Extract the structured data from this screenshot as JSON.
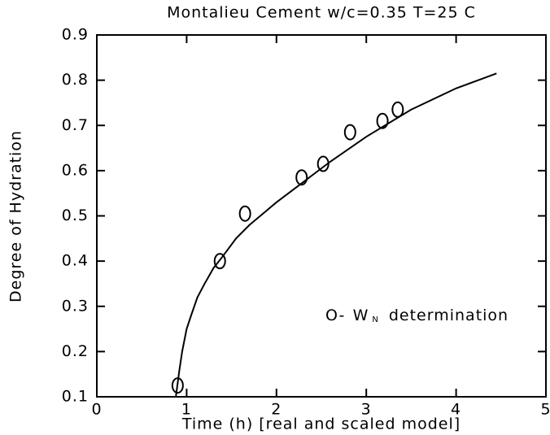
{
  "chart_data": {
    "type": "scatter",
    "title": "Montalieu Cement w/c=0.35  T=25 C",
    "x_label": "Time (h) [real and scaled model]",
    "y_label": "Degree of Hydration",
    "annotation": {
      "marker": "O-",
      "symbol": "W",
      "subscript": "N",
      "text": "determination"
    },
    "xlim": [
      0,
      5
    ],
    "ylim": [
      0.1,
      0.9
    ],
    "xticks": [
      0,
      1,
      2,
      3,
      4,
      5
    ],
    "yticks": [
      0.1,
      0.2,
      0.3,
      0.4,
      0.5,
      0.6,
      0.7,
      0.8,
      0.9
    ],
    "grid": false,
    "series": [
      {
        "mode": "markers",
        "color": "#000000",
        "x": [
          0.9,
          1.37,
          1.65,
          2.28,
          2.52,
          2.82,
          3.18,
          3.35
        ],
        "values": [
          0.125,
          0.4,
          0.505,
          0.585,
          0.615,
          0.685,
          0.71,
          0.735
        ]
      },
      {
        "mode": "line",
        "color": "#000000",
        "x": [
          0.88,
          0.92,
          0.95,
          1.0,
          1.05,
          1.12,
          1.2,
          1.3,
          1.4,
          1.55,
          1.7,
          1.85,
          2.0,
          2.3,
          2.6,
          3.0,
          3.5,
          4.0,
          4.45
        ],
        "values": [
          0.1,
          0.16,
          0.2,
          0.25,
          0.28,
          0.32,
          0.35,
          0.385,
          0.41,
          0.45,
          0.48,
          0.505,
          0.53,
          0.575,
          0.62,
          0.675,
          0.735,
          0.782,
          0.815
        ]
      }
    ]
  }
}
